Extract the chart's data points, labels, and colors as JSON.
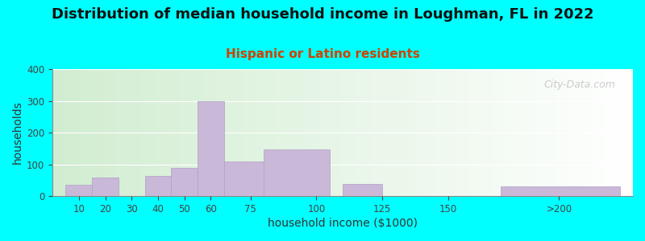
{
  "title": "Distribution of median household income in Loughman, FL in 2022",
  "subtitle": "Hispanic or Latino residents",
  "xlabel": "household income ($1000)",
  "ylabel": "households",
  "background_color": "#00FFFF",
  "bar_color": "#c9b8d8",
  "bar_edge_color": "#b0a0c8",
  "title_fontsize": 13,
  "subtitle_fontsize": 11,
  "subtitle_color": "#cc4400",
  "xlabel_fontsize": 10,
  "ylabel_fontsize": 10,
  "ylim": [
    0,
    400
  ],
  "yticks": [
    0,
    100,
    200,
    300,
    400
  ],
  "bar_lefts": [
    5,
    15,
    35,
    45,
    55,
    65,
    80,
    110,
    170
  ],
  "bar_widths": [
    10,
    10,
    10,
    10,
    10,
    15,
    25,
    15,
    45
  ],
  "values": [
    35,
    58,
    63,
    88,
    300,
    110,
    148,
    38,
    30
  ],
  "xlim": [
    0,
    220
  ],
  "xtick_positions": [
    10,
    20,
    30,
    40,
    50,
    60,
    75,
    100,
    125,
    150,
    192
  ],
  "xtick_labels": [
    "10",
    "20",
    "30",
    "40",
    "50",
    "60",
    "75",
    "100",
    "125",
    "150",
    ">200"
  ],
  "watermark": "City-Data.com"
}
